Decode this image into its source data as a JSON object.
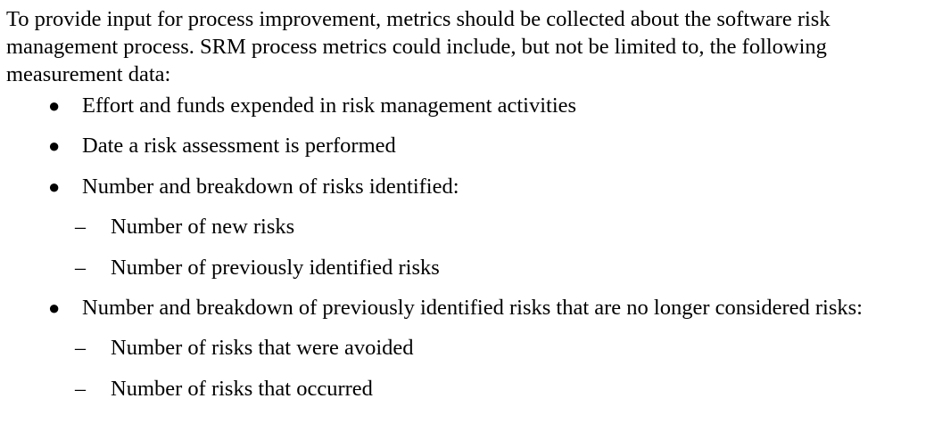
{
  "intro": {
    "lines": [
      "To provide input for process improvement, metrics should be collected about the software risk",
      "management process.  SRM process metrics could include, but not be limited to, the following",
      "measurement data:"
    ]
  },
  "list": {
    "bullet_glyph": "●",
    "dash_glyph": "–",
    "items": [
      {
        "text": "Effort and funds expended in risk management activities"
      },
      {
        "text": "Date a risk assessment is performed"
      },
      {
        "text": "Number and breakdown of risks identified:"
      },
      {
        "text": "Number of new risks"
      },
      {
        "text": "Number of previously identified risks"
      },
      {
        "text": "Number and breakdown of previously identified risks that are no longer considered risks:"
      },
      {
        "text": "Number of risks that were avoided"
      },
      {
        "text": "Number of risks that occurred"
      }
    ]
  }
}
